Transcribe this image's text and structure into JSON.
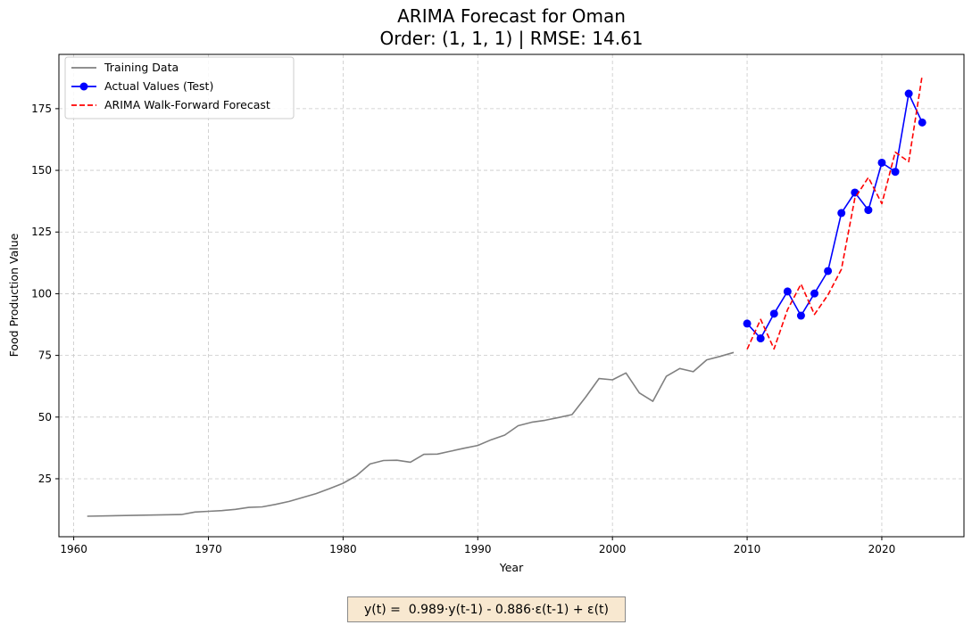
{
  "chart_data": {
    "type": "line",
    "title": "ARIMA Forecast for Oman",
    "subtitle": "Order: (1, 1, 1) | RMSE: 14.61",
    "xlabel": "Year",
    "ylabel": "Food Production Value",
    "xlim": [
      1958.9,
      2026.1
    ],
    "ylim": [
      1.5,
      197
    ],
    "x_ticks": [
      1960,
      1970,
      1980,
      1990,
      2000,
      2010,
      2020
    ],
    "y_ticks": [
      25,
      50,
      75,
      100,
      125,
      150,
      175
    ],
    "grid": true,
    "legend_position": "upper-left",
    "series": [
      {
        "name": "Training Data",
        "color": "#808080",
        "style": "solid",
        "markers": false,
        "x": [
          1961,
          1968,
          1969,
          1970,
          1971,
          1972,
          1973,
          1974,
          1975,
          1976,
          1977,
          1978,
          1979,
          1980,
          1981,
          1982,
          1983,
          1984,
          1985,
          1986,
          1987,
          1988,
          1989,
          1990,
          1991,
          1992,
          1993,
          1994,
          1995,
          1996,
          1997,
          1998,
          1999,
          2000,
          2001,
          2002,
          2003,
          2004,
          2005,
          2006,
          2007,
          2008,
          2009
        ],
        "y": [
          9.8,
          10.5,
          11.5,
          11.8,
          12.1,
          12.6,
          13.4,
          13.6,
          14.6,
          15.8,
          17.4,
          19.0,
          21.0,
          23.2,
          26.3,
          31.0,
          32.4,
          32.5,
          31.7,
          34.9,
          35.0,
          36.2,
          37.4,
          38.5,
          40.8,
          42.7,
          46.5,
          47.9,
          48.7,
          49.8,
          51.0,
          58.0,
          65.6,
          65.1,
          67.9,
          59.8,
          56.4,
          66.5,
          69.7,
          68.4,
          73.2,
          74.6,
          76.2
        ]
      },
      {
        "name": "Actual Values (Test)",
        "color": "#0000ff",
        "style": "solid",
        "markers": true,
        "x": [
          2010,
          2011,
          2012,
          2013,
          2014,
          2015,
          2016,
          2017,
          2018,
          2019,
          2020,
          2021,
          2022,
          2023
        ],
        "y": [
          87.9,
          81.9,
          91.9,
          100.9,
          91.1,
          100.1,
          109.2,
          132.7,
          141.0,
          133.9,
          153.1,
          149.4,
          181.1,
          169.4
        ]
      },
      {
        "name": "ARIMA Walk-Forward Forecast",
        "color": "#ff0000",
        "style": "dashed",
        "markers": false,
        "x": [
          2010,
          2011,
          2012,
          2013,
          2014,
          2015,
          2016,
          2017,
          2018,
          2019,
          2020,
          2021,
          2022,
          2023
        ],
        "y": [
          77.5,
          89.6,
          77.6,
          93.5,
          103.9,
          91.6,
          99.5,
          109.9,
          138.8,
          147.1,
          136.5,
          157.4,
          153.5,
          188.5
        ]
      }
    ],
    "annotation": "y(t) =  0.989·y(t-1) - 0.886·ε(t-1) + ε(t)"
  }
}
